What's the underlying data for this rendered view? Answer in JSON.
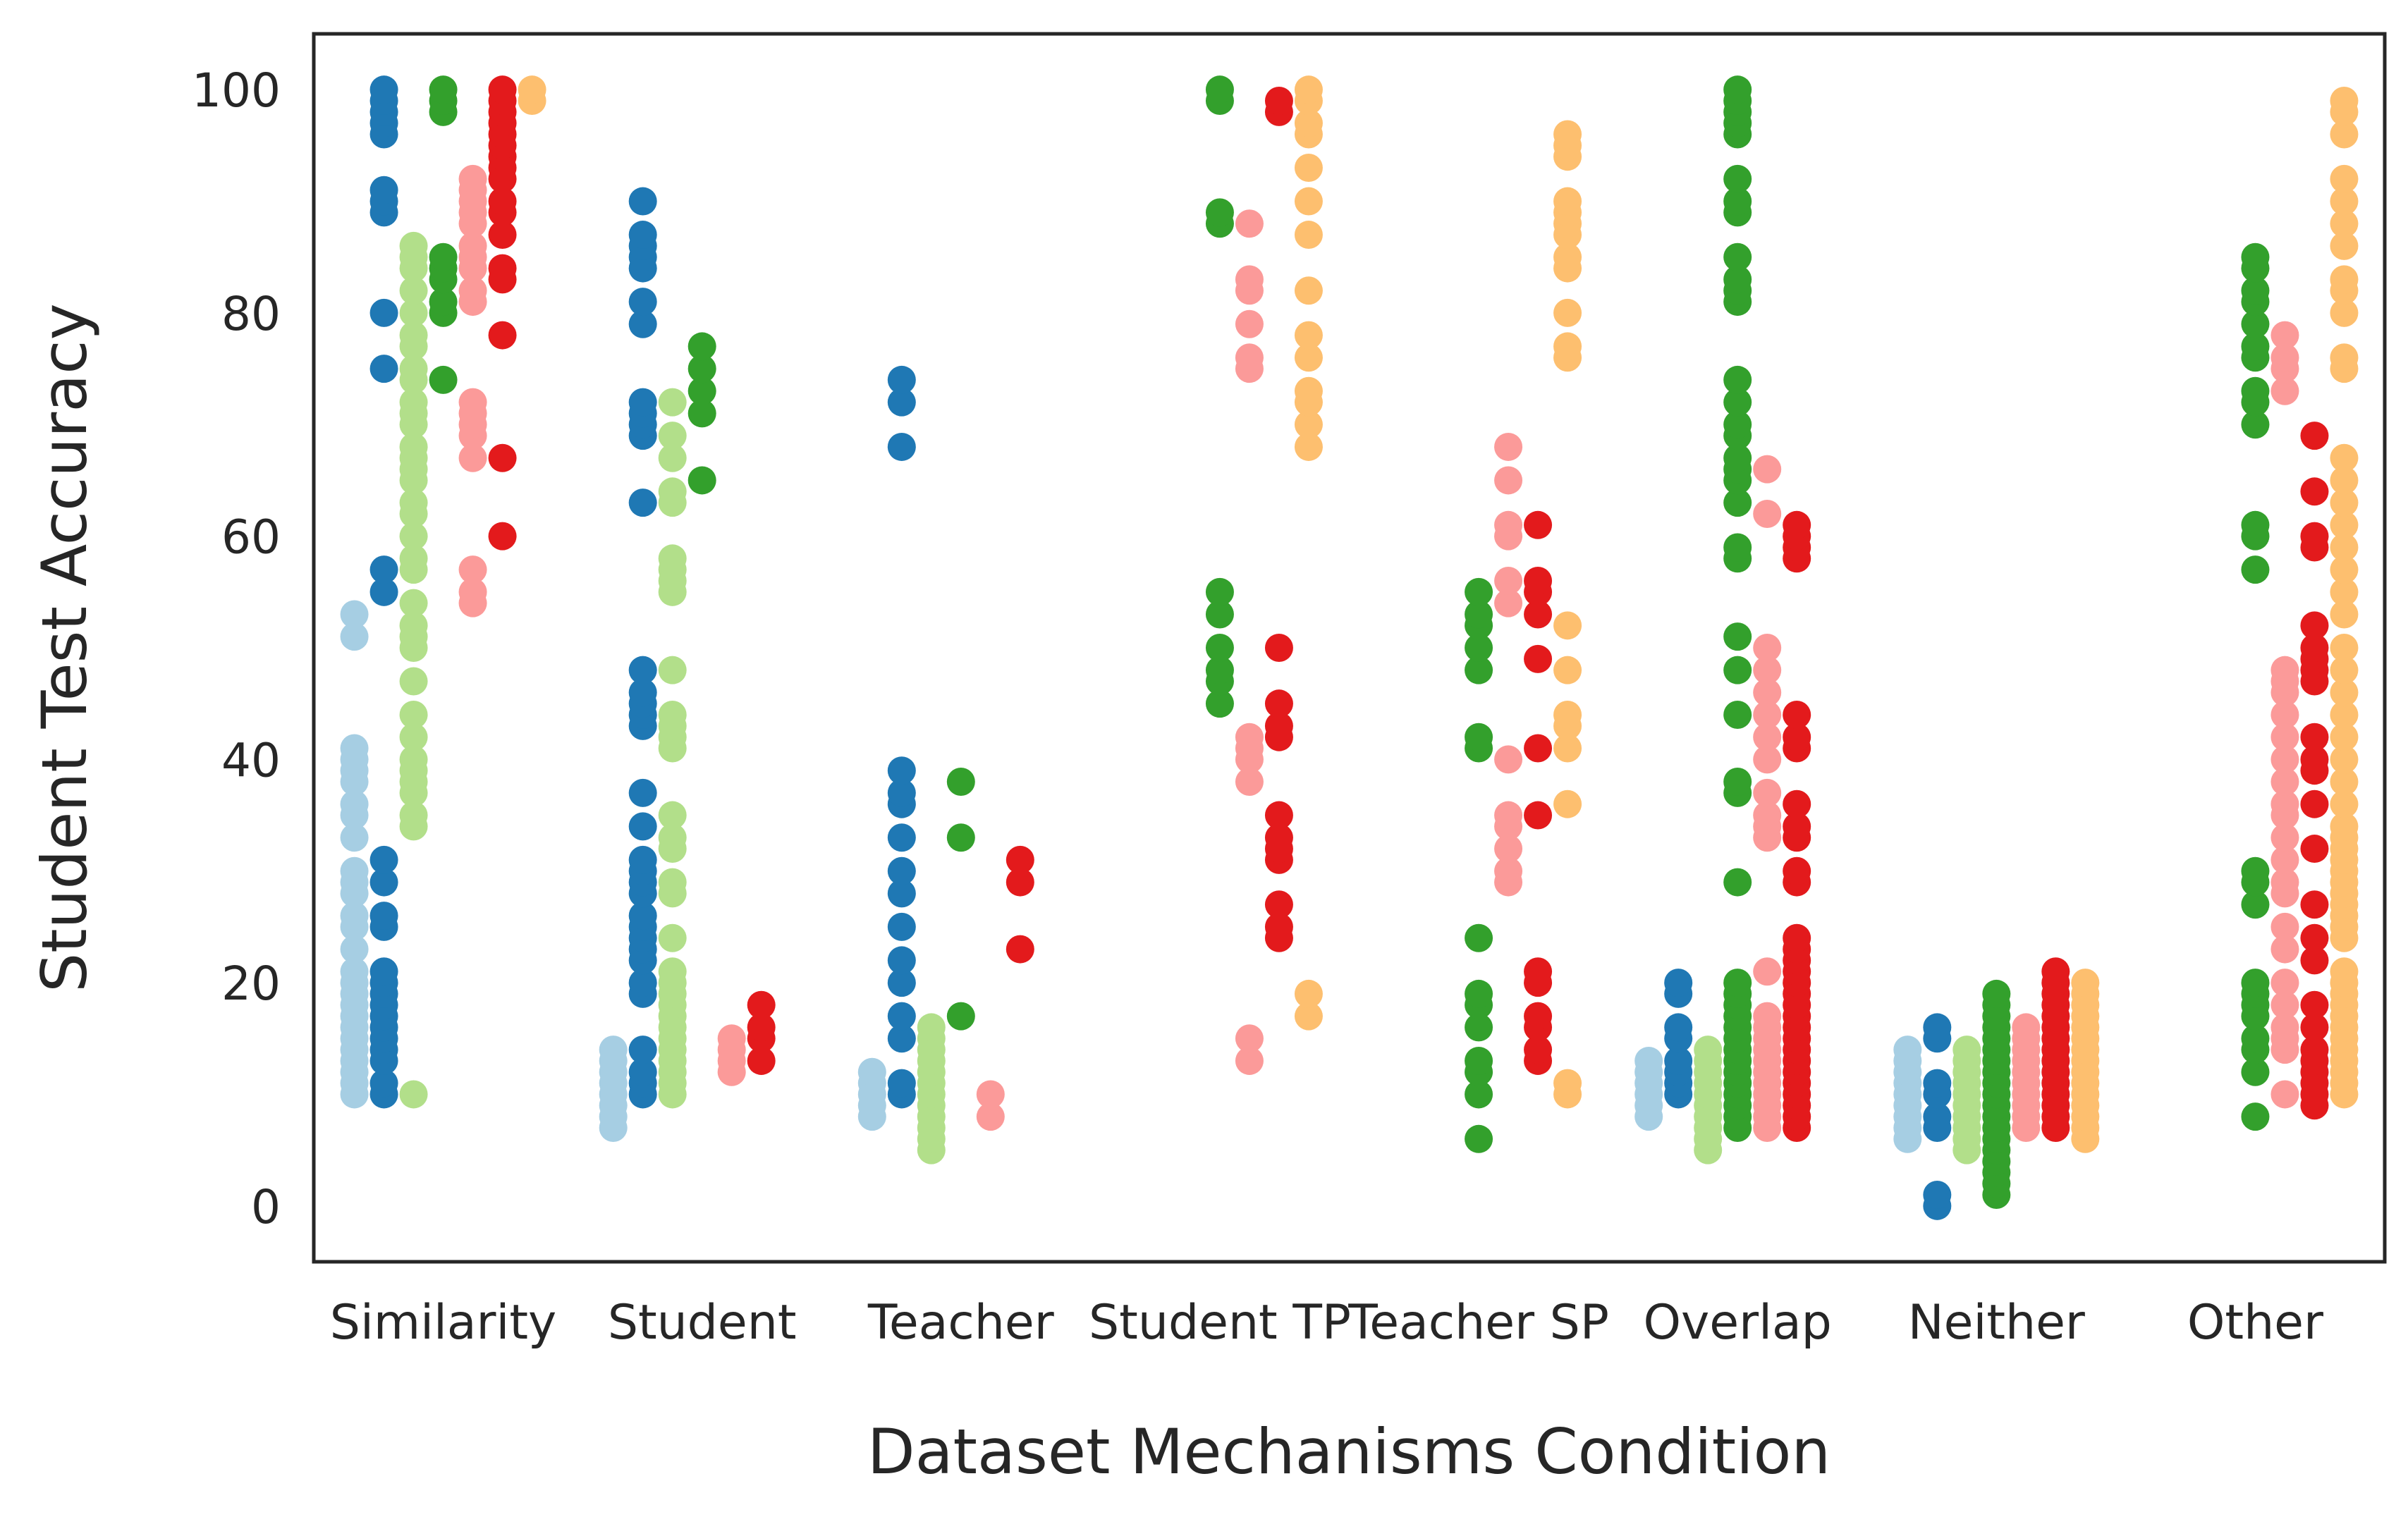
{
  "chart_data": {
    "type": "scatter",
    "xlabel": "Dataset Mechanisms Condition",
    "ylabel": "Student Test Accuracy",
    "ylim": [
      -5,
      105
    ],
    "yticks": [
      0,
      20,
      40,
      60,
      80,
      100
    ],
    "grid": false,
    "categories": [
      "Similarity",
      "Student",
      "Teacher",
      "Student TP",
      "Teacher SP",
      "Overlap",
      "Neither",
      "Other"
    ],
    "group_colors": [
      "#a6cee3",
      "#1f78b4",
      "#b2df8a",
      "#33a02c",
      "#fb9a99",
      "#e31a1c",
      "#fdbf6f"
    ],
    "points": [
      [
        [
          10,
          11,
          12,
          13,
          14,
          15,
          16,
          17,
          18,
          19,
          20,
          21,
          23,
          25,
          26,
          28,
          29,
          30,
          33,
          35,
          36,
          38,
          39,
          40,
          41,
          51,
          53
        ],
        [
          10,
          11,
          13,
          14,
          15,
          16,
          17,
          18,
          19,
          20,
          21,
          25,
          26,
          29,
          31,
          55,
          57,
          75,
          80,
          89,
          90,
          91,
          96,
          97,
          98,
          99,
          100
        ],
        [
          10,
          34,
          35,
          37,
          38,
          39,
          40,
          42,
          44,
          47,
          50,
          51,
          52,
          54,
          57,
          58,
          60,
          62,
          63,
          65,
          66,
          67,
          68,
          70,
          71,
          72,
          74,
          75,
          77,
          78,
          80,
          82,
          84,
          85,
          86
        ],
        [
          74,
          80,
          81,
          83,
          84,
          85,
          98,
          99,
          100
        ],
        [
          54,
          55,
          57,
          67,
          69,
          70,
          71,
          72,
          81,
          82,
          84,
          85,
          86,
          88,
          89,
          90,
          91,
          92
        ],
        [
          60,
          67,
          78,
          83,
          84,
          87,
          89,
          90,
          92,
          93,
          94,
          95,
          96,
          97,
          98,
          99,
          100
        ],
        [
          99,
          100
        ]
      ],
      [
        [
          7,
          8,
          9,
          10,
          11,
          12,
          13,
          14
        ],
        [
          10,
          11,
          12,
          14,
          19,
          20,
          22,
          23,
          24,
          25,
          26,
          28,
          29,
          30,
          31,
          34,
          37,
          43,
          44,
          45,
          46,
          48,
          63,
          69,
          70,
          71,
          72,
          79,
          81,
          84,
          85,
          86,
          87,
          90
        ],
        [
          10,
          11,
          12,
          13,
          14,
          15,
          16,
          17,
          18,
          19,
          20,
          21,
          24,
          28,
          29,
          32,
          33,
          35,
          41,
          42,
          43,
          44,
          48,
          55,
          56,
          57,
          58,
          63,
          64,
          67,
          69,
          72
        ],
        [
          65,
          71,
          73,
          75,
          77
        ],
        [
          12,
          13,
          14,
          15
        ],
        [
          13,
          15,
          16,
          18
        ]
      ],
      [
        [
          8,
          9,
          10,
          11,
          12
        ],
        [
          10,
          11,
          15,
          17,
          20,
          22,
          25,
          28,
          30,
          33,
          36,
          37,
          39,
          68,
          72,
          74
        ],
        [
          5,
          6,
          7,
          8,
          9,
          10,
          11,
          12,
          13,
          14,
          15,
          16
        ],
        [
          17,
          33,
          38
        ],
        [
          8,
          10
        ],
        [
          23,
          29,
          31
        ]
      ],
      [
        [],
        [],
        [],
        [
          45,
          47,
          48,
          50,
          53,
          55,
          88,
          89,
          99,
          100
        ],
        [
          13,
          15,
          38,
          40,
          41,
          42,
          75,
          76,
          79,
          82,
          83,
          88
        ],
        [
          24,
          25,
          27,
          31,
          32,
          33,
          35,
          42,
          43,
          45,
          50,
          98,
          99
        ],
        [
          17,
          19,
          68,
          70,
          72,
          73,
          76,
          78,
          82,
          87,
          90,
          93,
          96,
          97,
          99,
          100
        ]
      ],
      [
        [],
        [],
        [],
        [
          6,
          10,
          12,
          13,
          16,
          18,
          19,
          24,
          41,
          42,
          48,
          50,
          52,
          53,
          55
        ],
        [
          29,
          30,
          32,
          34,
          35,
          40,
          54,
          56,
          60,
          61,
          65,
          68
        ],
        [
          13,
          14,
          16,
          17,
          20,
          21,
          35,
          41,
          49,
          53,
          55,
          56,
          61
        ],
        [
          10,
          11,
          36,
          41,
          43,
          44,
          48,
          52,
          76,
          77,
          80,
          84,
          85,
          87,
          88,
          89,
          90,
          94,
          95,
          96
        ]
      ],
      [
        [
          8,
          9,
          10,
          11,
          12,
          13
        ],
        [
          10,
          11,
          12,
          13,
          15,
          16,
          19,
          20
        ],
        [
          5,
          6,
          7,
          8,
          9,
          10,
          11,
          12,
          13,
          14
        ],
        [
          7,
          8,
          9,
          10,
          11,
          12,
          13,
          14,
          15,
          16,
          17,
          18,
          19,
          20,
          29,
          37,
          38,
          44,
          48,
          51,
          58,
          59,
          63,
          65,
          66,
          67,
          69,
          70,
          72,
          74,
          81,
          82,
          83,
          85,
          89,
          90,
          92,
          96,
          97,
          98,
          99,
          100
        ],
        [
          7,
          8,
          9,
          10,
          11,
          12,
          13,
          14,
          15,
          16,
          17,
          21,
          33,
          34,
          35,
          37,
          40,
          42,
          44,
          46,
          48,
          50,
          62,
          66
        ],
        [
          7,
          8,
          9,
          10,
          11,
          12,
          13,
          14,
          15,
          16,
          17,
          18,
          19,
          20,
          21,
          22,
          23,
          24,
          29,
          30,
          33,
          34,
          36,
          41,
          42,
          44,
          58,
          59,
          60,
          61
        ],
        []
      ],
      [
        [
          6,
          7,
          8,
          9,
          10,
          11,
          12,
          13,
          14
        ],
        [
          0,
          1,
          7,
          8,
          10,
          11,
          15,
          16
        ],
        [
          5,
          6,
          7,
          8,
          9,
          10,
          11,
          12,
          13,
          14
        ],
        [
          1,
          2,
          3,
          4,
          5,
          6,
          7,
          8,
          9,
          10,
          11,
          12,
          13,
          14,
          15,
          16,
          17,
          18,
          19
        ],
        [
          7,
          8,
          9,
          10,
          11,
          12,
          13,
          14,
          15,
          16
        ],
        [
          7,
          8,
          9,
          10,
          11,
          12,
          13,
          14,
          15,
          16,
          17,
          18,
          19,
          20,
          21
        ],
        [
          6,
          7,
          8,
          9,
          10,
          11,
          12,
          13,
          14,
          15,
          16,
          17,
          18,
          19,
          20
        ]
      ],
      [
        [],
        [],
        [],
        [
          8,
          12,
          14,
          15,
          17,
          18,
          19,
          20,
          27,
          29,
          30,
          57,
          60,
          61,
          70,
          72,
          73,
          76,
          77,
          79,
          81,
          82,
          84,
          85
        ],
        [
          10,
          14,
          15,
          16,
          18,
          20,
          23,
          25,
          28,
          29,
          31,
          33,
          35,
          36,
          38,
          40,
          42,
          44,
          46,
          47,
          48,
          73,
          75,
          76,
          78
        ],
        [
          9,
          10,
          11,
          12,
          13,
          14,
          16,
          18,
          22,
          24,
          27,
          32,
          36,
          39,
          40,
          42,
          47,
          48,
          49,
          50,
          52,
          59,
          60,
          64,
          69
        ],
        [
          10,
          11,
          12,
          13,
          14,
          15,
          16,
          17,
          18,
          19,
          20,
          21,
          24,
          25,
          26,
          27,
          28,
          29,
          30,
          31,
          32,
          33,
          34,
          36,
          38,
          40,
          42,
          44,
          46,
          48,
          50,
          53,
          55,
          57,
          59,
          61,
          63,
          65,
          67,
          75,
          76,
          80,
          82,
          83,
          86,
          88,
          90,
          92,
          96,
          98,
          99
        ]
      ]
    ]
  }
}
